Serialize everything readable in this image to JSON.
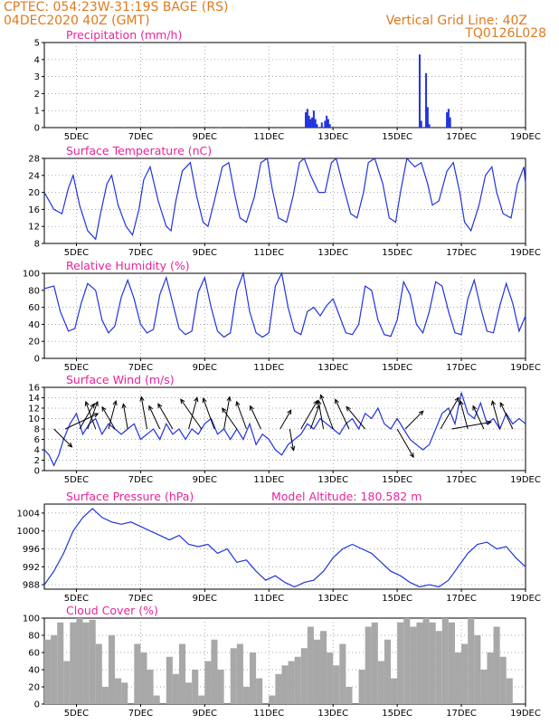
{
  "header": {
    "line1": "CPTEC:  054:23W-31:19S  BAGE (RS)",
    "line2": "04DEC2020 40Z (GMT)",
    "right1": "Vertical Grid Line: 40Z",
    "right2": "TQ0126L028",
    "color": "#e07a1f"
  },
  "colors": {
    "title": "#e8239a",
    "line": "#2233dd",
    "bars": "#2233dd",
    "cloud": "#a8a8a8"
  },
  "x_axis": {
    "start_day": 4,
    "end_day": 19,
    "tick_labels": [
      {
        "day": 5,
        "label": "5DEC"
      },
      {
        "day": 7,
        "label": "7DEC"
      },
      {
        "day": 9,
        "label": "9DEC"
      },
      {
        "day": 11,
        "label": "11DEC"
      },
      {
        "day": 13,
        "label": "13DEC"
      },
      {
        "day": 15,
        "label": "15DEC"
      },
      {
        "day": 17,
        "label": "17DEC"
      },
      {
        "day": 19,
        "label": "19DEC"
      }
    ]
  },
  "chart_data": [
    {
      "id": "precipitation",
      "type": "bar",
      "title": "Precipitation (mm/h)",
      "ylim": [
        0,
        5
      ],
      "yticks": [
        0,
        1,
        2,
        3,
        4,
        5
      ],
      "grid": true,
      "bars": [
        {
          "day": 5.0,
          "value": 0.03
        },
        {
          "day": 6.5,
          "value": 0.03
        },
        {
          "day": 7.2,
          "value": 0.03
        },
        {
          "day": 8.0,
          "value": 0.03
        },
        {
          "day": 9.5,
          "value": 0.03
        },
        {
          "day": 10.2,
          "value": 0.03
        },
        {
          "day": 12.15,
          "value": 0.9
        },
        {
          "day": 12.2,
          "value": 1.1
        },
        {
          "day": 12.25,
          "value": 0.7
        },
        {
          "day": 12.3,
          "value": 0.5
        },
        {
          "day": 12.35,
          "value": 0.6
        },
        {
          "day": 12.4,
          "value": 1.0
        },
        {
          "day": 12.45,
          "value": 0.5
        },
        {
          "day": 12.5,
          "value": 0.2
        },
        {
          "day": 12.65,
          "value": 0.3
        },
        {
          "day": 12.75,
          "value": 0.4
        },
        {
          "day": 12.8,
          "value": 0.7
        },
        {
          "day": 12.85,
          "value": 0.5
        },
        {
          "day": 12.9,
          "value": 0.2
        },
        {
          "day": 15.7,
          "value": 4.3
        },
        {
          "day": 15.75,
          "value": 0.4
        },
        {
          "day": 15.9,
          "value": 3.2
        },
        {
          "day": 15.95,
          "value": 1.2
        },
        {
          "day": 16.0,
          "value": 0.2
        },
        {
          "day": 16.55,
          "value": 0.9
        },
        {
          "day": 16.6,
          "value": 1.1
        },
        {
          "day": 16.65,
          "value": 0.6
        }
      ]
    },
    {
      "id": "temperature",
      "type": "line",
      "title": "Surface Temperature (nC)",
      "ylim": [
        8,
        28
      ],
      "yticks": [
        8,
        12,
        16,
        20,
        24,
        28
      ],
      "grid": true,
      "x": [
        4.0,
        4.3,
        4.55,
        4.75,
        4.9,
        5.1,
        5.35,
        5.6,
        5.75,
        5.95,
        6.1,
        6.3,
        6.55,
        6.75,
        6.95,
        7.1,
        7.3,
        7.55,
        7.8,
        7.95,
        8.1,
        8.3,
        8.55,
        8.75,
        8.95,
        9.1,
        9.3,
        9.55,
        9.75,
        9.95,
        10.1,
        10.3,
        10.55,
        10.75,
        10.95,
        11.1,
        11.3,
        11.55,
        11.75,
        11.95,
        12.1,
        12.3,
        12.55,
        12.75,
        12.95,
        13.1,
        13.3,
        13.55,
        13.75,
        13.95,
        14.1,
        14.3,
        14.55,
        14.75,
        14.95,
        15.1,
        15.3,
        15.55,
        15.75,
        15.95,
        16.1,
        16.3,
        16.55,
        16.75,
        16.95,
        17.1,
        17.3,
        17.55,
        17.75,
        17.95,
        18.1,
        18.3,
        18.55,
        18.75,
        18.95,
        19.0
      ],
      "values": [
        20,
        16,
        15,
        21,
        24,
        17,
        11,
        9,
        15,
        22,
        24,
        17,
        12,
        10,
        16,
        23,
        26,
        18,
        12,
        11,
        18,
        25,
        27,
        19,
        13,
        12,
        18,
        26,
        27,
        19,
        14,
        13,
        19,
        27,
        28,
        21,
        14,
        13,
        19,
        27,
        28,
        24,
        20,
        20,
        27,
        28,
        22,
        15,
        14,
        20,
        27,
        28,
        22,
        14,
        13,
        20,
        28,
        26,
        27,
        22,
        17,
        18,
        25,
        27,
        20,
        13,
        11,
        17,
        24,
        26,
        20,
        15,
        14,
        22,
        26,
        22
      ]
    },
    {
      "id": "humidity",
      "type": "line",
      "title": "Relative Humidity (%)",
      "ylim": [
        0,
        100
      ],
      "yticks": [
        0,
        20,
        40,
        60,
        80,
        100
      ],
      "grid": true,
      "x": [
        4.0,
        4.3,
        4.5,
        4.75,
        4.95,
        5.15,
        5.35,
        5.6,
        5.8,
        6.0,
        6.2,
        6.4,
        6.6,
        6.8,
        7.0,
        7.2,
        7.4,
        7.6,
        7.8,
        8.0,
        8.2,
        8.4,
        8.6,
        8.8,
        9.0,
        9.2,
        9.4,
        9.6,
        9.8,
        10.0,
        10.2,
        10.4,
        10.6,
        10.8,
        11.0,
        11.2,
        11.4,
        11.6,
        11.8,
        12.0,
        12.2,
        12.4,
        12.6,
        12.8,
        13.0,
        13.2,
        13.4,
        13.6,
        13.8,
        14.0,
        14.2,
        14.4,
        14.6,
        14.8,
        15.0,
        15.2,
        15.4,
        15.6,
        15.8,
        16.0,
        16.2,
        16.4,
        16.6,
        16.8,
        17.0,
        17.2,
        17.4,
        17.6,
        17.8,
        18.0,
        18.2,
        18.4,
        18.6,
        18.8,
        19.0
      ],
      "values": [
        82,
        85,
        55,
        32,
        35,
        65,
        88,
        80,
        45,
        30,
        38,
        72,
        92,
        70,
        40,
        30,
        34,
        75,
        95,
        65,
        35,
        28,
        32,
        78,
        95,
        60,
        32,
        25,
        30,
        80,
        100,
        55,
        30,
        25,
        30,
        85,
        100,
        60,
        32,
        28,
        55,
        60,
        50,
        62,
        70,
        50,
        30,
        28,
        40,
        85,
        80,
        45,
        28,
        26,
        45,
        90,
        75,
        40,
        30,
        55,
        90,
        85,
        55,
        30,
        28,
        70,
        92,
        60,
        32,
        30,
        62,
        88,
        65,
        32,
        50
      ]
    },
    {
      "id": "wind",
      "type": "line",
      "title": "Surface Wind (m/s)",
      "ylim": [
        0,
        16
      ],
      "yticks": [
        0,
        2,
        4,
        6,
        8,
        10,
        12,
        14,
        16
      ],
      "grid": true,
      "x": [
        4.0,
        4.15,
        4.3,
        4.45,
        4.6,
        4.8,
        5.0,
        5.2,
        5.4,
        5.6,
        5.8,
        6.0,
        6.2,
        6.4,
        6.6,
        6.8,
        7.0,
        7.2,
        7.4,
        7.6,
        7.8,
        8.0,
        8.2,
        8.4,
        8.6,
        8.8,
        9.0,
        9.2,
        9.4,
        9.6,
        9.8,
        10.0,
        10.2,
        10.4,
        10.6,
        10.8,
        11.0,
        11.2,
        11.4,
        11.6,
        11.8,
        12.0,
        12.2,
        12.4,
        12.6,
        12.8,
        13.0,
        13.2,
        13.4,
        13.6,
        13.8,
        14.0,
        14.2,
        14.4,
        14.6,
        14.8,
        15.0,
        15.2,
        15.4,
        15.6,
        15.8,
        16.0,
        16.2,
        16.4,
        16.6,
        16.8,
        17.0,
        17.2,
        17.4,
        17.6,
        17.8,
        18.0,
        18.2,
        18.4,
        18.6,
        18.8,
        19.0
      ],
      "values": [
        4,
        3,
        1,
        3,
        6,
        9,
        11,
        7,
        9,
        10,
        7,
        9,
        8,
        7,
        8,
        9,
        6,
        7,
        8,
        6,
        9,
        7,
        8,
        6,
        8,
        7,
        9,
        10,
        7,
        8,
        6,
        8,
        6,
        9,
        5,
        7,
        6,
        4,
        3,
        5,
        6,
        7,
        9,
        8,
        10,
        9,
        8,
        7,
        9,
        10,
        8,
        11,
        10,
        12,
        9,
        8,
        10,
        8,
        6,
        5,
        4,
        5,
        8,
        11,
        12,
        9,
        15,
        11,
        10,
        13,
        9,
        10,
        8,
        11,
        9,
        10,
        9
      ]
    },
    {
      "id": "pressure",
      "type": "line",
      "title": "Surface Pressure (hPa)",
      "annotation": "Model Altitude: 180.582 m",
      "ylim": [
        987,
        1006
      ],
      "yticks": [
        988,
        992,
        996,
        1000,
        1004
      ],
      "grid": true,
      "x": [
        4.0,
        4.3,
        4.6,
        4.9,
        5.2,
        5.5,
        5.8,
        6.1,
        6.4,
        6.7,
        7.0,
        7.3,
        7.6,
        7.9,
        8.2,
        8.5,
        8.8,
        9.1,
        9.4,
        9.7,
        10.0,
        10.3,
        10.6,
        10.9,
        11.2,
        11.5,
        11.8,
        12.1,
        12.4,
        12.7,
        13.0,
        13.3,
        13.6,
        13.9,
        14.2,
        14.5,
        14.8,
        15.1,
        15.4,
        15.7,
        16.0,
        16.3,
        16.6,
        16.9,
        17.2,
        17.5,
        17.8,
        18.1,
        18.4,
        18.7,
        19.0
      ],
      "values": [
        988,
        991,
        995,
        1000,
        1003,
        1005,
        1003,
        1002,
        1001.5,
        1002,
        1001,
        1000,
        999,
        998,
        999,
        997,
        996.5,
        997,
        995,
        996,
        993,
        993.5,
        991,
        989,
        990,
        988.5,
        987.5,
        988.5,
        989,
        991,
        994,
        996,
        997,
        996,
        995,
        993,
        991,
        990,
        988.5,
        987.5,
        988,
        987.5,
        989,
        992,
        995,
        997,
        997.5,
        996,
        996.5,
        994,
        992
      ]
    },
    {
      "id": "cloud",
      "type": "area",
      "title": "Cloud Cover (%)",
      "ylim": [
        0,
        100
      ],
      "yticks": [
        0,
        20,
        40,
        60,
        80,
        100
      ],
      "grid": true,
      "x": [
        4.0,
        4.2,
        4.4,
        4.6,
        4.8,
        5.0,
        5.2,
        5.4,
        5.6,
        5.8,
        6.0,
        6.2,
        6.4,
        6.6,
        6.8,
        7.0,
        7.2,
        7.4,
        7.6,
        7.8,
        8.0,
        8.2,
        8.4,
        8.6,
        8.8,
        9.0,
        9.2,
        9.4,
        9.6,
        9.8,
        10.0,
        10.2,
        10.4,
        10.6,
        10.8,
        11.0,
        11.2,
        11.4,
        11.6,
        11.8,
        12.0,
        12.2,
        12.4,
        12.6,
        12.8,
        13.0,
        13.2,
        13.4,
        13.6,
        13.8,
        14.0,
        14.2,
        14.4,
        14.6,
        14.8,
        15.0,
        15.2,
        15.4,
        15.6,
        15.8,
        16.0,
        16.2,
        16.4,
        16.6,
        16.8,
        17.0,
        17.2,
        17.4,
        17.6,
        17.8,
        18.0,
        18.2,
        18.4,
        18.6,
        18.8,
        19.0
      ],
      "values": [
        75,
        80,
        95,
        50,
        95,
        100,
        95,
        98,
        70,
        20,
        80,
        30,
        25,
        0,
        70,
        60,
        40,
        10,
        0,
        55,
        35,
        70,
        25,
        40,
        10,
        50,
        75,
        40,
        0,
        65,
        70,
        20,
        60,
        30,
        0,
        10,
        35,
        45,
        50,
        55,
        65,
        90,
        75,
        85,
        60,
        45,
        70,
        20,
        0,
        40,
        90,
        95,
        50,
        75,
        30,
        95,
        100,
        90,
        95,
        100,
        95,
        85,
        100,
        95,
        60,
        70,
        100,
        80,
        40,
        60,
        90,
        55,
        30,
        0,
        0,
        0
      ]
    }
  ],
  "wind_vectors": [
    {
      "day": 4.3,
      "speed": 7,
      "dir": 45
    },
    {
      "day": 4.65,
      "speed": 10,
      "dir": 115
    },
    {
      "day": 5.1,
      "speed": 8,
      "dir": 150
    },
    {
      "day": 5.35,
      "speed": 8,
      "dir": 160
    },
    {
      "day": 5.6,
      "speed": 8,
      "dir": 200
    },
    {
      "day": 6.0,
      "speed": 8,
      "dir": 165
    },
    {
      "day": 6.2,
      "speed": 7,
      "dir": 210
    },
    {
      "day": 6.6,
      "speed": 7,
      "dir": 190
    },
    {
      "day": 7.2,
      "speed": 9,
      "dir": 190
    },
    {
      "day": 7.6,
      "speed": 7,
      "dir": 205
    },
    {
      "day": 8.0,
      "speed": 8,
      "dir": 210
    },
    {
      "day": 8.5,
      "speed": 9,
      "dir": 165
    },
    {
      "day": 8.9,
      "speed": 10,
      "dir": 215
    },
    {
      "day": 9.3,
      "speed": 9,
      "dir": 200
    },
    {
      "day": 9.6,
      "speed": 9,
      "dir": 170
    },
    {
      "day": 10.0,
      "speed": 7,
      "dir": 215
    },
    {
      "day": 10.3,
      "speed": 8,
      "dir": 200
    },
    {
      "day": 10.75,
      "speed": 7,
      "dir": 205
    },
    {
      "day": 11.35,
      "speed": 6,
      "dir": 150
    },
    {
      "day": 11.65,
      "speed": 6,
      "dir": 10
    },
    {
      "day": 12.0,
      "speed": 9,
      "dir": 150
    },
    {
      "day": 12.3,
      "speed": 7,
      "dir": 160
    },
    {
      "day": 12.7,
      "speed": 8,
      "dir": 190
    },
    {
      "day": 13.0,
      "speed": 10,
      "dir": 200
    },
    {
      "day": 13.5,
      "speed": 9,
      "dir": 205
    },
    {
      "day": 14.0,
      "speed": 8,
      "dir": 220
    },
    {
      "day": 15.0,
      "speed": 9,
      "dir": 30
    },
    {
      "day": 15.25,
      "speed": 7,
      "dir": 135
    },
    {
      "day": 16.35,
      "speed": 10,
      "dir": 150
    },
    {
      "day": 16.7,
      "speed": 11,
      "dir": 100
    },
    {
      "day": 17.2,
      "speed": 8,
      "dir": 195
    },
    {
      "day": 17.7,
      "speed": 7,
      "dir": 205
    },
    {
      "day": 18.2,
      "speed": 8,
      "dir": 195
    },
    {
      "day": 18.6,
      "speed": 8,
      "dir": 205
    }
  ]
}
